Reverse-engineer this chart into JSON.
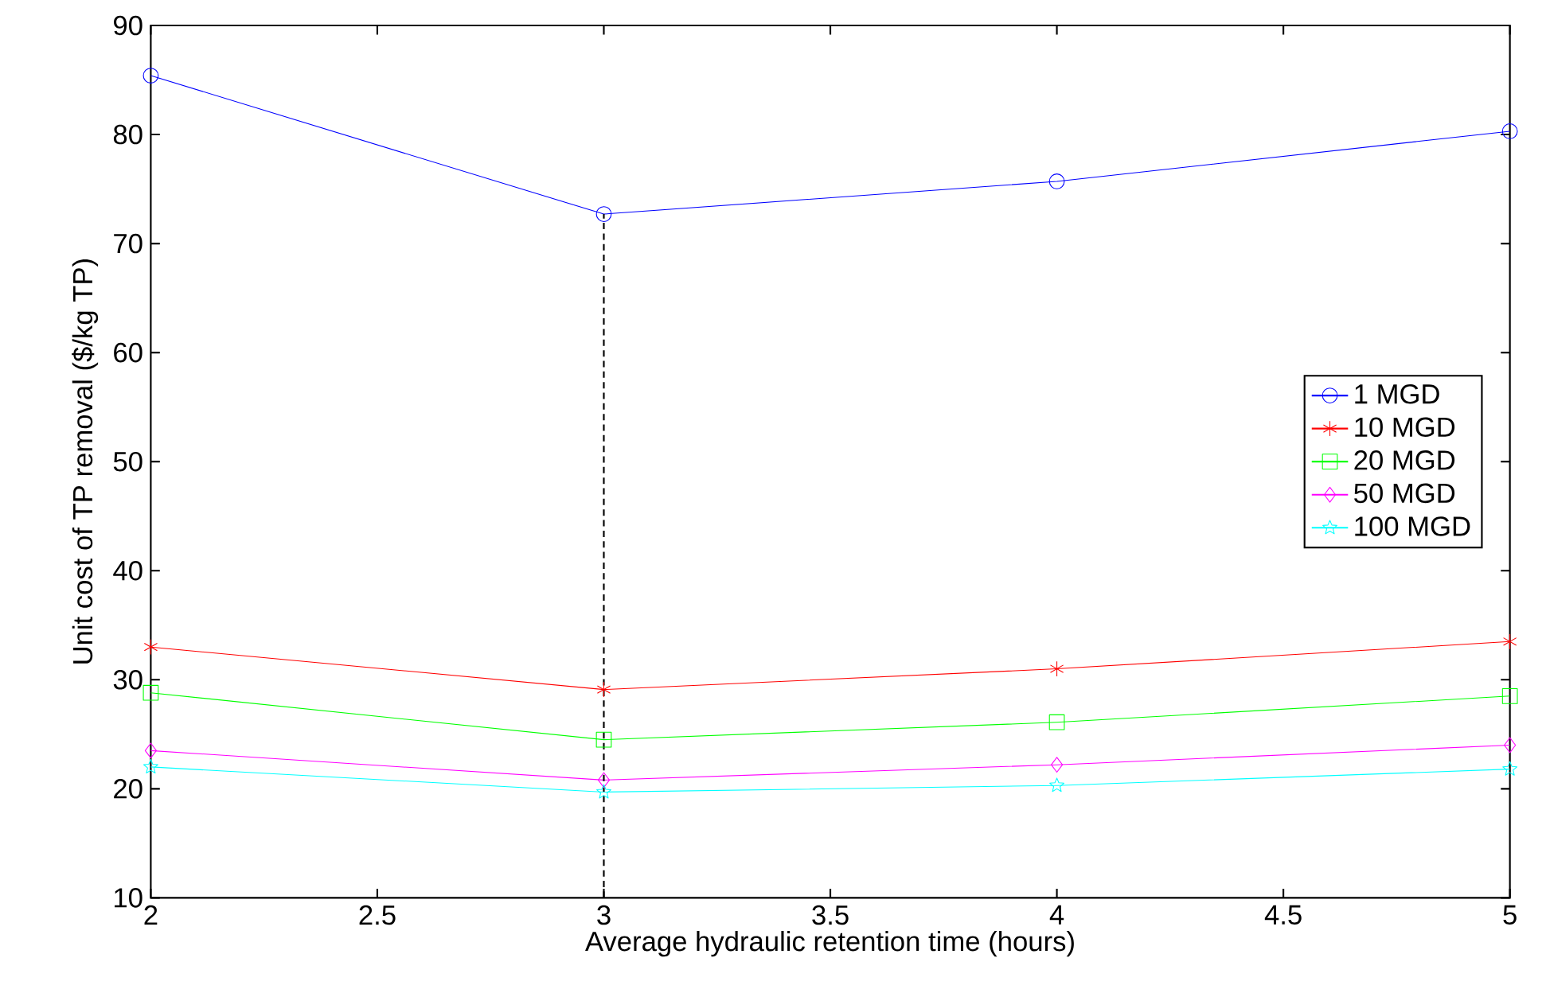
{
  "chart_data": {
    "type": "line",
    "xlabel": "Average hydraulic retention time  (hours)",
    "ylabel": "Unit cost of TP removal  ($/kg TP)",
    "x": [
      2,
      3,
      4,
      5
    ],
    "series": [
      {
        "name": "1 MGD",
        "color": "#0000ff",
        "marker": "circle",
        "values": [
          85.4,
          72.7,
          75.7,
          80.3
        ]
      },
      {
        "name": "10 MGD",
        "color": "#ff0000",
        "marker": "cross",
        "values": [
          33.0,
          29.1,
          31.0,
          33.5
        ]
      },
      {
        "name": "20 MGD",
        "color": "#00ff00",
        "marker": "square",
        "values": [
          28.8,
          24.5,
          26.1,
          28.5
        ]
      },
      {
        "name": "50 MGD",
        "color": "#ff00ff",
        "marker": "diamond",
        "values": [
          23.5,
          20.8,
          22.2,
          24.0
        ]
      },
      {
        "name": "100 MGD",
        "color": "#00ffff",
        "marker": "star",
        "values": [
          22.0,
          19.7,
          20.3,
          21.8
        ]
      }
    ],
    "xlim": [
      2,
      5
    ],
    "ylim": [
      10,
      90
    ],
    "xticks": [
      2,
      2.5,
      3,
      3.5,
      4,
      4.5,
      5
    ],
    "yticks": [
      10,
      20,
      30,
      40,
      50,
      60,
      70,
      80,
      90
    ],
    "ref_lines": [
      {
        "axis": "x",
        "value": 3,
        "color": "#000000",
        "line_style": "dashed"
      }
    ],
    "legend": "right",
    "grid": false,
    "line_style": "solid"
  }
}
